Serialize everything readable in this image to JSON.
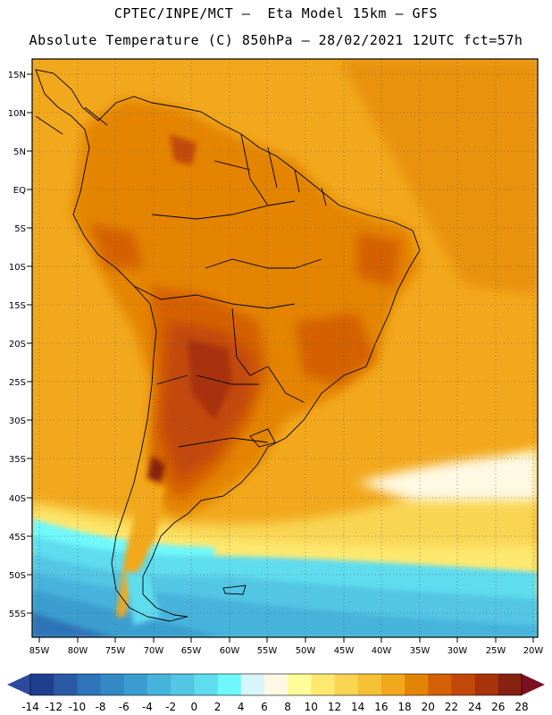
{
  "header": {
    "line1": "CPTEC/INPE/MCT –  Eta Model 15km – GFS",
    "line2": "Absolute Temperature (C) 850hPa – 28/02/2021 12UTC fct=57h"
  },
  "map": {
    "latitude_labels": [
      "15N",
      "10N",
      "5N",
      "EQ",
      "5S",
      "10S",
      "15S",
      "20S",
      "25S",
      "30S",
      "35S",
      "40S",
      "45S",
      "50S",
      "55S"
    ],
    "longitude_labels": [
      "85W",
      "80W",
      "75W",
      "70W",
      "65W",
      "60W",
      "55W",
      "50W",
      "45W",
      "40W",
      "35W",
      "30W",
      "25W",
      "20W"
    ]
  },
  "colorbar": {
    "ticks": [
      "-14",
      "-12",
      "-10",
      "-8",
      "-6",
      "-4",
      "-2",
      "0",
      "2",
      "4",
      "6",
      "8",
      "10",
      "12",
      "14",
      "16",
      "18",
      "20",
      "22",
      "24",
      "26",
      "28"
    ],
    "colors": [
      "#1f3f8e",
      "#2a5aa6",
      "#2f73b8",
      "#3389c4",
      "#3a9ed0",
      "#46b3dc",
      "#52c6e4",
      "#5fdcee",
      "#6ff8fb",
      "#d7f6fb",
      "#fff9e3",
      "#fffc9a",
      "#fde96f",
      "#f9d553",
      "#f5c036",
      "#f2a81c",
      "#e48406",
      "#d46106",
      "#c2480a",
      "#a8320a",
      "#862210"
    ],
    "under_color": "#2b4aa0",
    "over_color": "#7d0f22"
  },
  "icons": {
    "left_arrow": "colorbar-min-triangle-icon",
    "right_arrow": "colorbar-max-triangle-icon"
  }
}
